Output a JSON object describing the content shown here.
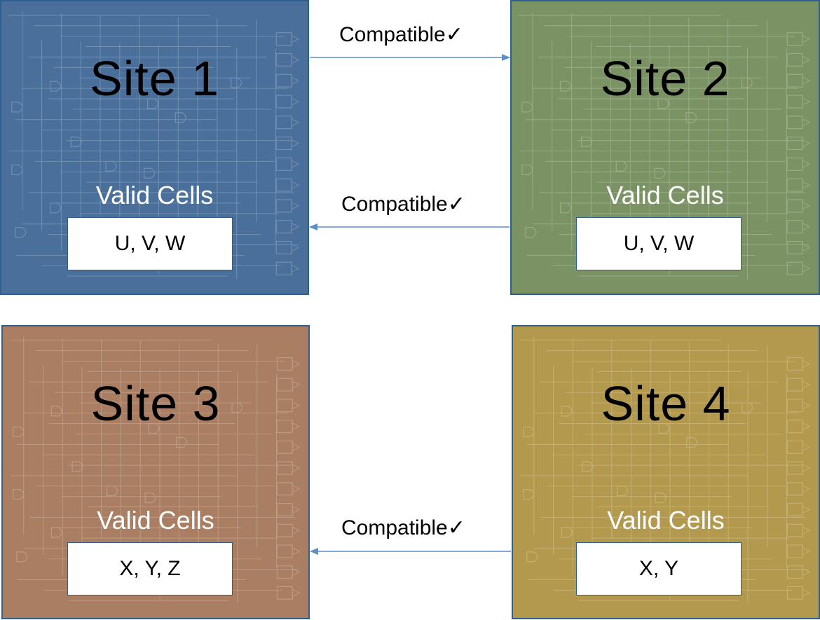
{
  "sites": [
    {
      "title": "Site 1",
      "valid_label": "Valid Cells",
      "cells": "U, V, W",
      "color": "#4a6f9a"
    },
    {
      "title": "Site 2",
      "valid_label": "Valid Cells",
      "cells": "U, V, W",
      "color": "#7b9364"
    },
    {
      "title": "Site 3",
      "valid_label": "Valid Cells",
      "cells": "X, Y, Z",
      "color": "#a97e62"
    },
    {
      "title": "Site 4",
      "valid_label": "Valid Cells",
      "cells": "X, Y",
      "color": "#b3994e"
    }
  ],
  "links": [
    {
      "label": "Compatible✓",
      "from": "Site 1",
      "to": "Site 2"
    },
    {
      "label": "Compatible✓",
      "from": "Site 2",
      "to": "Site 1"
    },
    {
      "label": "Compatible✓",
      "from": "Site 4",
      "to": "Site 3"
    }
  ],
  "arrow_color": "#5b8fc9"
}
